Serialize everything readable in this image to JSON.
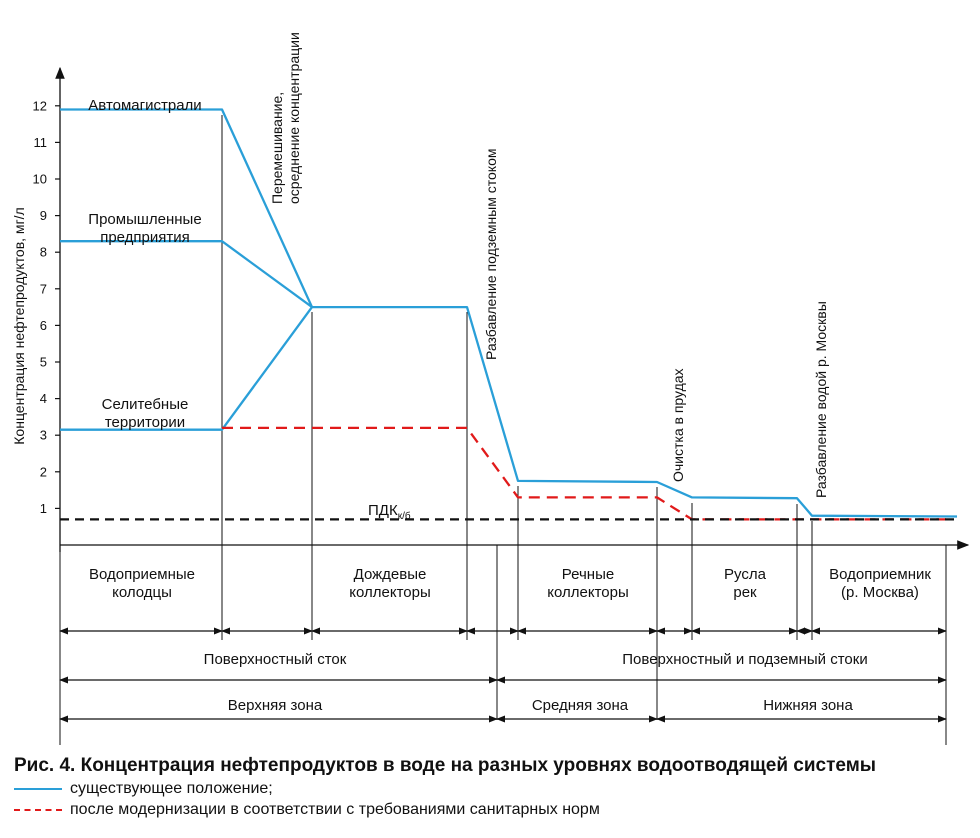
{
  "chart_data": {
    "type": "line",
    "ylabel": "Концентрация нефтепродуктов, мг/л",
    "ylim": [
      0,
      13
    ],
    "y_ticks": [
      "1",
      "2",
      "3",
      "4",
      "5",
      "6",
      "7",
      "8",
      "9",
      "10",
      "11",
      "12"
    ],
    "x_units": "stages of the drainage system (ordinal)",
    "series": [
      {
        "name": "Автомагистрали",
        "style": "solid",
        "color": "#2a9fd8",
        "points": [
          [
            0,
            11.9
          ],
          [
            1,
            11.9
          ],
          [
            1.45,
            6.5
          ]
        ]
      },
      {
        "name": "Промышленные предприятия",
        "style": "solid",
        "color": "#2a9fd8",
        "points": [
          [
            0,
            8.3
          ],
          [
            1,
            8.3
          ],
          [
            1.45,
            6.5
          ]
        ]
      },
      {
        "name": "Селитебные территории",
        "style": "solid",
        "color": "#2a9fd8",
        "points": [
          [
            0,
            3.15
          ],
          [
            1,
            3.15
          ],
          [
            1.45,
            6.5
          ]
        ]
      },
      {
        "name": "существующее положение",
        "style": "solid",
        "color": "#2a9fd8",
        "points": [
          [
            1.45,
            6.5
          ],
          [
            2.2,
            6.5
          ],
          [
            2.45,
            1.75
          ],
          [
            3.25,
            1.72
          ],
          [
            3.4,
            1.3
          ],
          [
            3.75,
            1.28
          ],
          [
            3.85,
            0.8
          ],
          [
            4.5,
            0.78
          ]
        ]
      },
      {
        "name": "после модернизации в соответствии с требованиями санитарных норм",
        "style": "dashed",
        "color": "#e11a1a",
        "points": [
          [
            1,
            3.2
          ],
          [
            2.2,
            3.2
          ],
          [
            2.45,
            1.3
          ],
          [
            3.25,
            1.3
          ],
          [
            3.4,
            0.7
          ],
          [
            4.0,
            0.7
          ]
        ]
      },
      {
        "name": "ПДК к/б",
        "style": "dashed",
        "color": "#111111",
        "points": [
          [
            0,
            0.7
          ],
          [
            4.5,
            0.7
          ]
        ]
      }
    ],
    "series_labels": [
      {
        "lines": [
          "Автомагистрали"
        ]
      },
      {
        "lines": [
          "Промышленные",
          "предприятия"
        ]
      },
      {
        "lines": [
          "Селитебные",
          "территории"
        ]
      }
    ],
    "pdk_label": {
      "main": "ПДК",
      "sub": "к/б"
    },
    "annotations": [
      {
        "lines": [
          "Перемешивание,",
          "осреднение концентрации"
        ]
      },
      {
        "lines": [
          "Разбавление подземным стоком"
        ]
      },
      {
        "lines": [
          "Очистка в прудах"
        ]
      },
      {
        "lines": [
          "Разбавление водой р. Москвы"
        ]
      }
    ],
    "stages": [
      {
        "lines": [
          "Водоприемные",
          "колодцы"
        ]
      },
      {
        "lines": [
          "Дождевые",
          "коллекторы"
        ]
      },
      {
        "lines": [
          "Речные",
          "коллекторы"
        ]
      },
      {
        "lines": [
          "Русла",
          "рек"
        ]
      },
      {
        "lines": [
          "Водоприемник",
          "(р. Москва)"
        ]
      }
    ],
    "flows": [
      "Поверхностный сток",
      "Поверхностный и подземный стоки"
    ],
    "zones": [
      "Верхняя зона",
      "Средняя зона",
      "Нижняя зона"
    ],
    "grid": false,
    "legend_position": "bottom-left"
  },
  "caption": {
    "title": "Рис. 4. Концентрация нефтепродуктов в воде на разных уровнях водоотводящей системы",
    "legend": [
      {
        "style": "solid",
        "color": "#2a9fd8",
        "label": "существующее положение;"
      },
      {
        "style": "dashed",
        "color": "#e11a1a",
        "label": "после модернизации в соответствии с требованиями санитарных норм"
      }
    ]
  }
}
